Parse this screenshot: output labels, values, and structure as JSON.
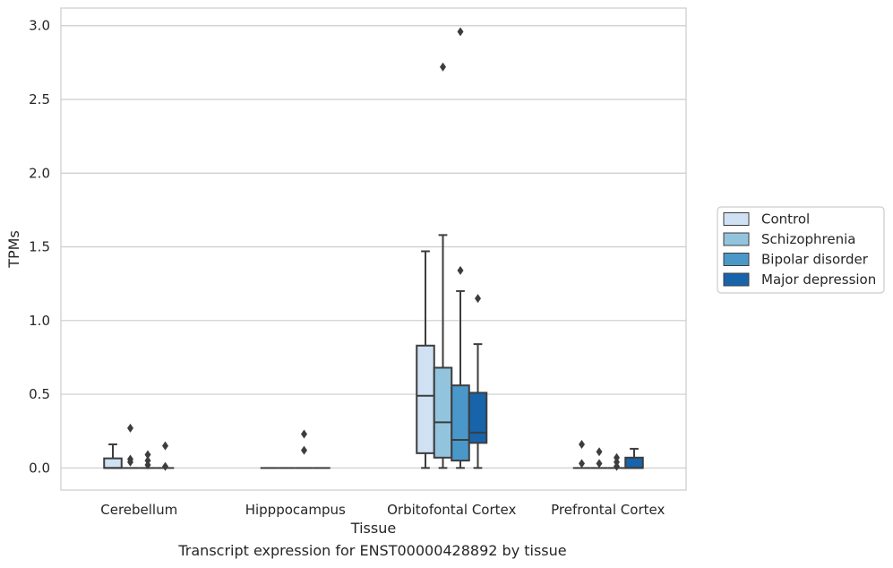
{
  "chart_data": {
    "type": "box",
    "caption": "Transcript expression for ENST00000428892 by tissue",
    "xlabel": "Tissue",
    "ylabel": "TPMs",
    "ylim": [
      -0.15,
      3.12
    ],
    "yticks": [
      0.0,
      0.5,
      1.0,
      1.5,
      2.0,
      2.5,
      3.0
    ],
    "ytick_labels": [
      "0.0",
      "0.5",
      "1.0",
      "1.5",
      "2.0",
      "2.5",
      "3.0"
    ],
    "grid": "horizontal",
    "legend_position": "right",
    "categories": [
      "Cerebellum",
      "Hipppocampus",
      "Orbitofontal Cortex",
      "Prefrontal Cortex"
    ],
    "series": [
      {
        "name": "Control",
        "color": "#cfe1f2",
        "boxes": [
          {
            "whislo": 0.0,
            "q1": 0.0,
            "med": 0.0,
            "q3": 0.065,
            "whishi": 0.16,
            "fliers": []
          },
          {
            "whislo": 0.0,
            "q1": 0.0,
            "med": 0.0,
            "q3": 0.0,
            "whishi": 0.0,
            "fliers": []
          },
          {
            "whislo": 0.0,
            "q1": 0.1,
            "med": 0.49,
            "q3": 0.83,
            "whishi": 1.47,
            "fliers": []
          },
          {
            "whislo": 0.0,
            "q1": 0.0,
            "med": 0.0,
            "q3": 0.0,
            "whishi": 0.0,
            "fliers": [
              0.16,
              0.03
            ]
          }
        ]
      },
      {
        "name": "Schizophrenia",
        "color": "#93c4de",
        "boxes": [
          {
            "whislo": 0.0,
            "q1": 0.0,
            "med": 0.0,
            "q3": 0.0,
            "whishi": 0.0,
            "fliers": [
              0.27,
              0.06,
              0.04
            ]
          },
          {
            "whislo": 0.0,
            "q1": 0.0,
            "med": 0.0,
            "q3": 0.0,
            "whishi": 0.0,
            "fliers": []
          },
          {
            "whislo": 0.0,
            "q1": 0.07,
            "med": 0.31,
            "q3": 0.68,
            "whishi": 1.58,
            "fliers": [
              2.72
            ]
          },
          {
            "whislo": 0.0,
            "q1": 0.0,
            "med": 0.0,
            "q3": 0.0,
            "whishi": 0.0,
            "fliers": [
              0.11,
              0.03
            ]
          }
        ]
      },
      {
        "name": "Bipolar disorder",
        "color": "#4a98c9",
        "boxes": [
          {
            "whislo": 0.0,
            "q1": 0.0,
            "med": 0.0,
            "q3": 0.0,
            "whishi": 0.0,
            "fliers": [
              0.09,
              0.05,
              0.02
            ]
          },
          {
            "whislo": 0.0,
            "q1": 0.0,
            "med": 0.0,
            "q3": 0.0,
            "whishi": 0.0,
            "fliers": [
              0.23,
              0.12
            ]
          },
          {
            "whislo": 0.0,
            "q1": 0.05,
            "med": 0.19,
            "q3": 0.56,
            "whishi": 1.2,
            "fliers": [
              2.96,
              1.34
            ]
          },
          {
            "whislo": 0.0,
            "q1": 0.0,
            "med": 0.0,
            "q3": 0.0,
            "whishi": 0.0,
            "fliers": [
              0.07,
              0.04,
              0.01
            ]
          }
        ]
      },
      {
        "name": "Major depression",
        "color": "#1764ab",
        "boxes": [
          {
            "whislo": 0.0,
            "q1": 0.0,
            "med": 0.0,
            "q3": 0.0,
            "whishi": 0.0,
            "fliers": [
              0.15,
              0.01
            ]
          },
          {
            "whislo": 0.0,
            "q1": 0.0,
            "med": 0.0,
            "q3": 0.0,
            "whishi": 0.0,
            "fliers": []
          },
          {
            "whislo": 0.0,
            "q1": 0.17,
            "med": 0.24,
            "q3": 0.51,
            "whishi": 0.84,
            "fliers": [
              1.15
            ]
          },
          {
            "whislo": 0.0,
            "q1": 0.0,
            "med": 0.0,
            "q3": 0.07,
            "whishi": 0.13,
            "fliers": []
          }
        ]
      }
    ]
  }
}
